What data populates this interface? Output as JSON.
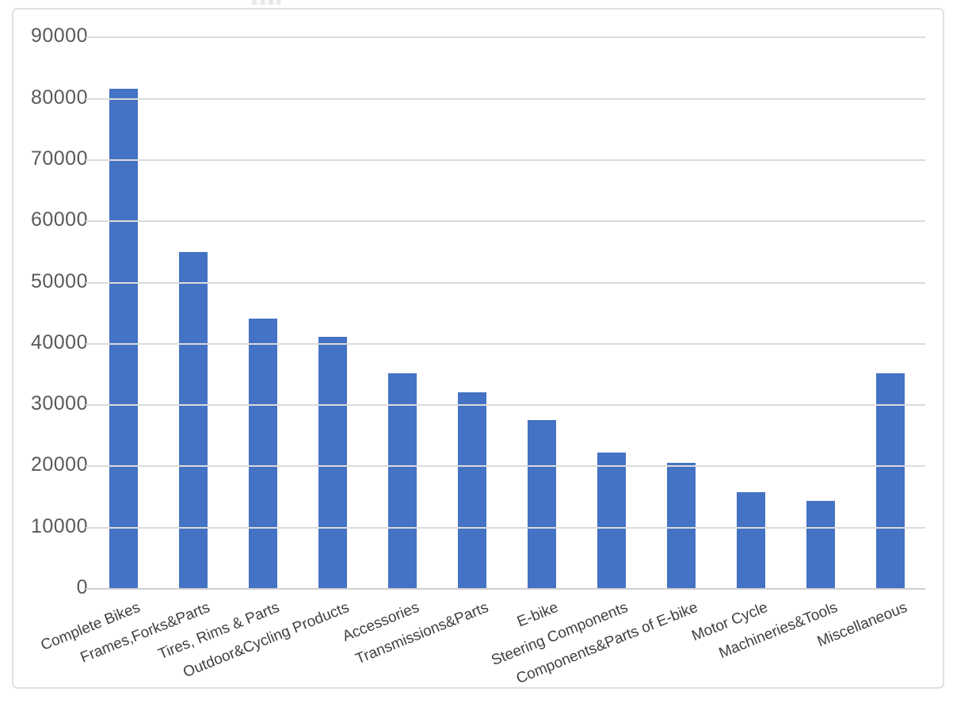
{
  "chart_data": {
    "type": "bar",
    "title": "",
    "xlabel": "",
    "ylabel": "",
    "categories": [
      "Complete Bikes",
      "Frames,Forks&Parts",
      "Tires, Rims & Parts",
      "Outdoor&Cycling Products",
      "Accessories",
      "Transmissions&Parts",
      "E-bike",
      "Steering Components",
      "Components&Parts of E-bike",
      "Motor Cycle",
      "Machineries&Tools",
      "Miscellaneous"
    ],
    "values": [
      81500,
      54800,
      44000,
      41000,
      35100,
      32000,
      27400,
      22100,
      20400,
      15600,
      14200,
      35100
    ],
    "ylim": [
      0,
      90000
    ],
    "ytick_interval": 10000,
    "ytick_labels": [
      "0",
      "10000",
      "20000",
      "30000",
      "40000",
      "50000",
      "60000",
      "70000",
      "80000",
      "90000"
    ],
    "grid": "horizontal",
    "legend": "none",
    "x_label_rotation_deg": -22,
    "colors": {
      "bar": "#4472C4",
      "gridline": "#dbdbdb",
      "axis_line": "#cfcfcf",
      "ytick_text": "#595959",
      "xtick_text": "#3f3f3f",
      "frame_border": "#e0e0e0",
      "background": "#ffffff"
    }
  }
}
